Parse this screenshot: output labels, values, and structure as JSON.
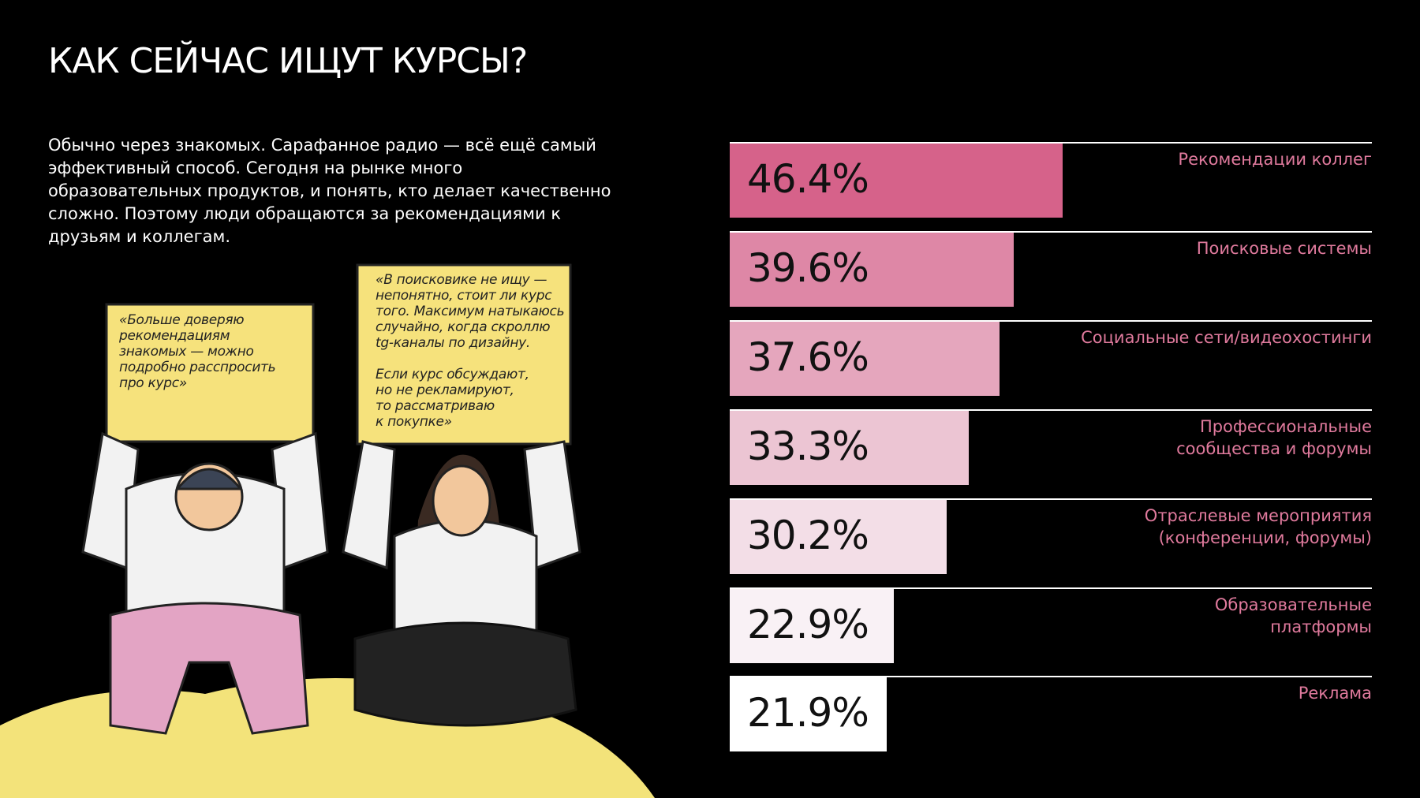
{
  "header": {
    "title": "КАК СЕЙЧАС ИЩУТ КУРСЫ?",
    "description": "Обычно через знакомых. Сарафанное радио — всё ещё самый эффективный способ. Сегодня на рынке много образовательных продуктов, и понять, кто делает качественно сложно. Поэтому люди обращаются за рекомендациями к друзьям и коллегам."
  },
  "illustration": {
    "quotes": [
      "«Больше доверяю\nрекомендациям\nзнакомых — можно\nподробно расспросить\nпро курс»",
      "«В поисковике не ищу —\nнепонятно, стоит ли курс\nтого. Максимум натыкаюсь\nслучайно, когда скроллю\ntg-каналы по дизайну.\n\nЕсли курс обсуждают,\nно не рекламируют,\nто рассматриваю\nк покупке»"
    ]
  },
  "chart_data": {
    "type": "bar",
    "categories": [
      "Рекомендации коллег",
      "Поисковые системы",
      "Социальные сети/видеохостинги",
      "Профессиональные\nсообщества и форумы",
      "Отраслевые мероприятия\n(конференции, форумы)",
      "Образовательные\nплатформы",
      "Реклама"
    ],
    "values": [
      46.4,
      39.6,
      37.6,
      33.3,
      30.2,
      22.9,
      21.9
    ],
    "value_labels": [
      "46.4%",
      "39.6%",
      "37.6%",
      "33.3%",
      "30.2%",
      "22.9%",
      "21.9%"
    ],
    "colors": [
      "#d6628a",
      "#de87a6",
      "#e5a6bd",
      "#ecc5d3",
      "#f3dee7",
      "#f9f1f5",
      "#ffffff"
    ],
    "label_color": "#e07a9d"
  }
}
